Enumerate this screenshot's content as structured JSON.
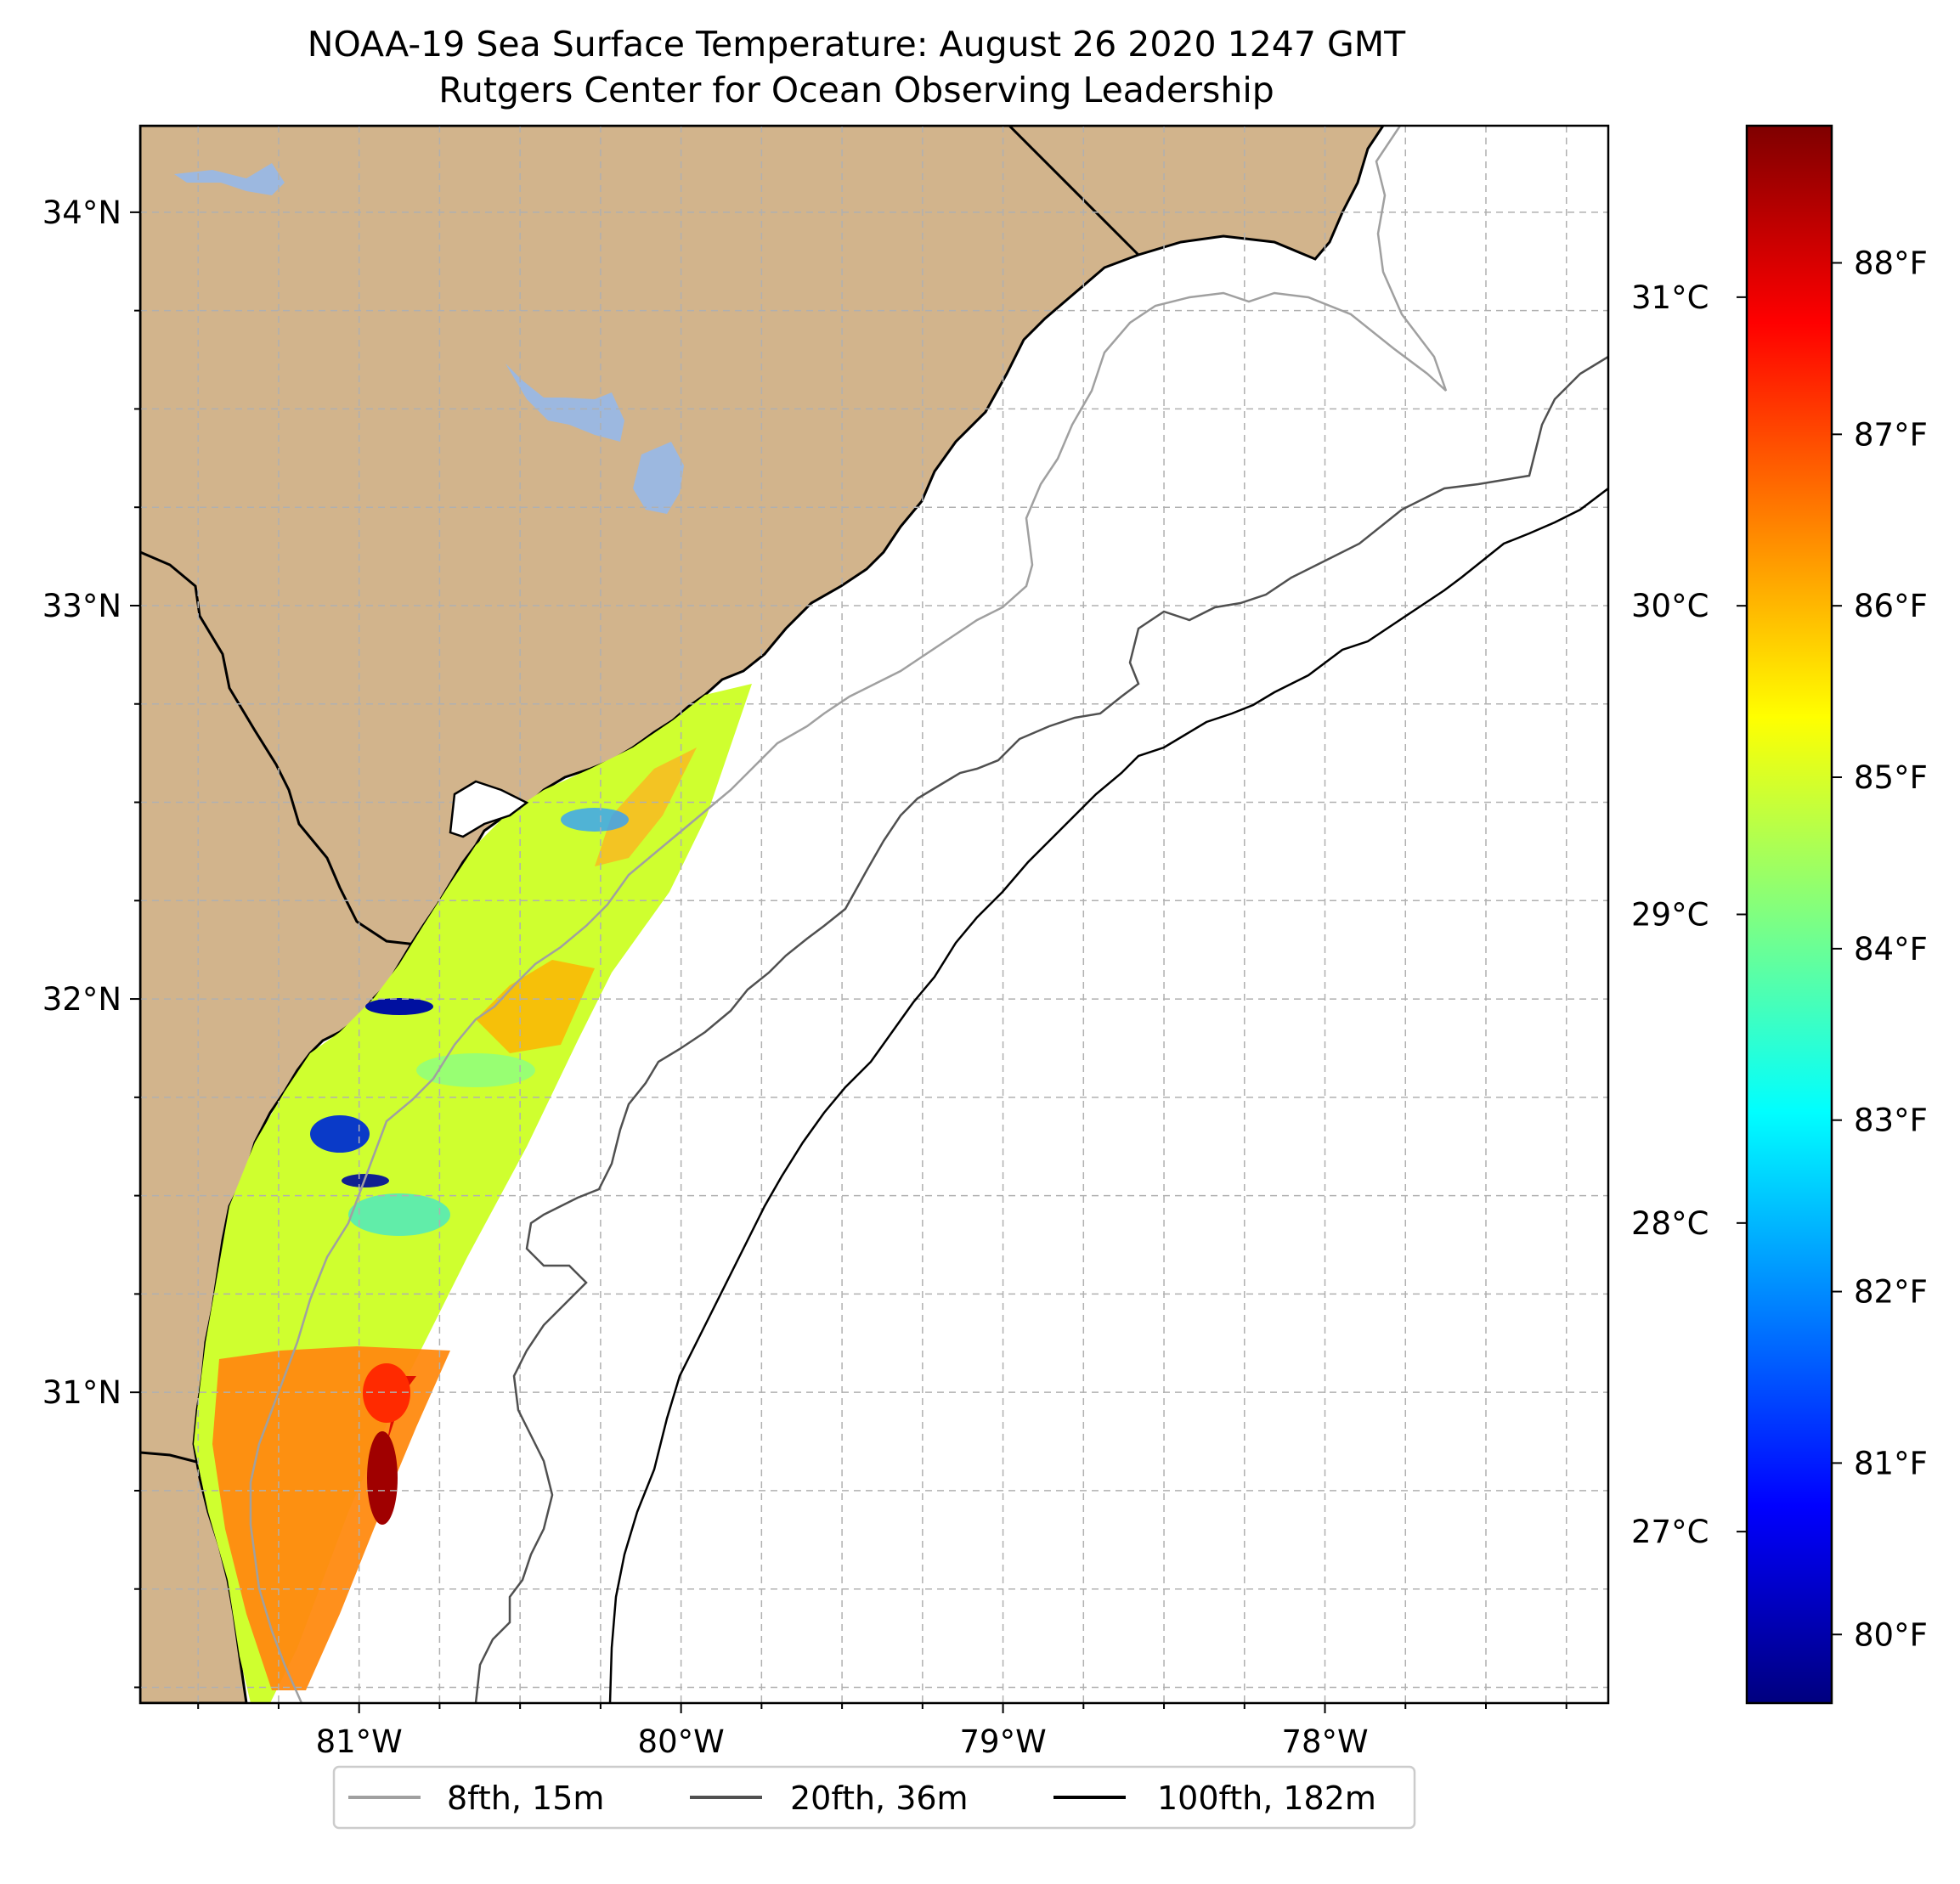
{
  "title": {
    "line1": "NOAA-19 Sea Surface Temperature: August 26 2020 1247 GMT",
    "line2": "Rutgers Center for Ocean Observing Leadership"
  },
  "map": {
    "lon_range": [
      -81.68,
      -77.12
    ],
    "lat_range": [
      30.21,
      34.22
    ],
    "land_color": "#d2b48c",
    "water_color": "#ffffff",
    "lake_color": "#9cb8e0",
    "lat_ticks": [
      {
        "value": 34,
        "label": "34°N"
      },
      {
        "value": 33,
        "label": "33°N"
      },
      {
        "value": 32,
        "label": "32°N"
      },
      {
        "value": 31,
        "label": "31°N"
      }
    ],
    "lon_ticks": [
      {
        "value": -81,
        "label": "81°W"
      },
      {
        "value": -80,
        "label": "80°W"
      },
      {
        "value": -79,
        "label": "79°W"
      },
      {
        "value": -78,
        "label": "78°W"
      }
    ],
    "grid": true
  },
  "colorbar": {
    "colormap": "jet",
    "colors": [
      "#00007f",
      "#0000ff",
      "#0080ff",
      "#00ffff",
      "#80ff80",
      "#ffff00",
      "#ff8000",
      "#ff0000",
      "#7f0000"
    ],
    "range_f": [
      79.6,
      88.8
    ],
    "f_ticks": [
      {
        "value": 88,
        "label": "88°F"
      },
      {
        "value": 87,
        "label": "87°F"
      },
      {
        "value": 86,
        "label": "86°F"
      },
      {
        "value": 85,
        "label": "85°F"
      },
      {
        "value": 84,
        "label": "84°F"
      },
      {
        "value": 83,
        "label": "83°F"
      },
      {
        "value": 82,
        "label": "82°F"
      },
      {
        "value": 81,
        "label": "81°F"
      },
      {
        "value": 80,
        "label": "80°F"
      }
    ],
    "c_ticks": [
      {
        "value": 31,
        "label": "31°C"
      },
      {
        "value": 30,
        "label": "30°C"
      },
      {
        "value": 29,
        "label": "29°C"
      },
      {
        "value": 28,
        "label": "28°C"
      },
      {
        "value": 27,
        "label": "27°C"
      }
    ]
  },
  "legend": {
    "placement": "bottom-center",
    "items": [
      {
        "label": "8fth, 15m",
        "color": "#a0a0a0"
      },
      {
        "label": "20fth, 36m",
        "color": "#505050"
      },
      {
        "label": "100fth, 182m",
        "color": "#000000"
      }
    ]
  }
}
